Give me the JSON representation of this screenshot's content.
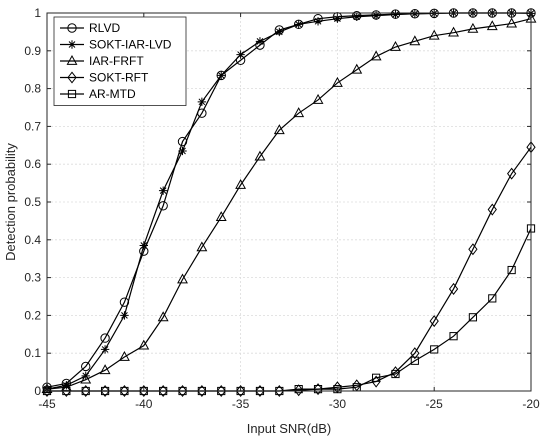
{
  "chart_data": {
    "type": "line",
    "xlabel": "Input SNR(dB)",
    "ylabel": "Detection probability",
    "xlim": [
      -45,
      -20
    ],
    "ylim": [
      0,
      1
    ],
    "xticks": [
      -45,
      -40,
      -35,
      -30,
      -25,
      -20
    ],
    "yticks": [
      0,
      0.1,
      0.2,
      0.3,
      0.4,
      0.5,
      0.6,
      0.7,
      0.8,
      0.9,
      1
    ],
    "grid": true,
    "legend_position": "top-left",
    "series": [
      {
        "name": "RLVD",
        "marker": "circle",
        "x": [
          -45,
          -44,
          -43,
          -42,
          -41,
          -40,
          -39,
          -38,
          -37,
          -36,
          -35,
          -34,
          -33,
          -32,
          -31,
          -30,
          -29,
          -28,
          -27,
          -26,
          -25,
          -24,
          -23,
          -22,
          -21,
          -20
        ],
        "y": [
          0.01,
          0.02,
          0.065,
          0.14,
          0.235,
          0.37,
          0.49,
          0.66,
          0.735,
          0.835,
          0.875,
          0.915,
          0.955,
          0.97,
          0.985,
          0.99,
          0.993,
          0.995,
          0.997,
          0.998,
          0.999,
          1.0,
          1.0,
          1.0,
          1.0,
          1.0
        ]
      },
      {
        "name": "SOKT-IAR-LVD",
        "marker": "asterisk",
        "x": [
          -45,
          -44,
          -43,
          -42,
          -41,
          -40,
          -39,
          -38,
          -37,
          -36,
          -35,
          -34,
          -33,
          -32,
          -31,
          -30,
          -29,
          -28,
          -27,
          -26,
          -25,
          -24,
          -23,
          -22,
          -21,
          -20
        ],
        "y": [
          0.005,
          0.015,
          0.04,
          0.11,
          0.2,
          0.385,
          0.53,
          0.635,
          0.765,
          0.835,
          0.89,
          0.925,
          0.95,
          0.97,
          0.978,
          0.985,
          0.99,
          0.993,
          0.996,
          0.998,
          0.999,
          1.0,
          1.0,
          1.0,
          1.0,
          0.999
        ]
      },
      {
        "name": "IAR-FRFT",
        "marker": "triangle",
        "x": [
          -45,
          -44,
          -43,
          -42,
          -41,
          -40,
          -39,
          -38,
          -37,
          -36,
          -35,
          -34,
          -33,
          -32,
          -31,
          -30,
          -29,
          -28,
          -27,
          -26,
          -25,
          -24,
          -23,
          -22,
          -21,
          -20
        ],
        "y": [
          0.005,
          0.01,
          0.03,
          0.055,
          0.09,
          0.12,
          0.195,
          0.295,
          0.38,
          0.46,
          0.545,
          0.62,
          0.69,
          0.735,
          0.77,
          0.815,
          0.85,
          0.885,
          0.91,
          0.925,
          0.94,
          0.948,
          0.958,
          0.965,
          0.972,
          0.985
        ]
      },
      {
        "name": "SOKT-RFT",
        "marker": "diamond",
        "x": [
          -45,
          -44,
          -43,
          -42,
          -41,
          -40,
          -39,
          -38,
          -37,
          -36,
          -35,
          -34,
          -33,
          -32,
          -31,
          -30,
          -29,
          -28,
          -27,
          -26,
          -25,
          -24,
          -23,
          -22,
          -21,
          -20
        ],
        "y": [
          0.0,
          0.0,
          0.0,
          0.0,
          0.0,
          0.0,
          0.0,
          0.0,
          0.0,
          0.0,
          0.0,
          0.0,
          0.0,
          0.002,
          0.005,
          0.01,
          0.015,
          0.025,
          0.05,
          0.1,
          0.185,
          0.27,
          0.375,
          0.48,
          0.575,
          0.645
        ]
      },
      {
        "name": "AR-MTD",
        "marker": "square",
        "x": [
          -45,
          -44,
          -43,
          -42,
          -41,
          -40,
          -39,
          -38,
          -37,
          -36,
          -35,
          -34,
          -33,
          -32,
          -31,
          -30,
          -29,
          -28,
          -27,
          -26,
          -25,
          -24,
          -23,
          -22,
          -21,
          -20
        ],
        "y": [
          0.0,
          0.0,
          0.0,
          0.0,
          0.0,
          0.0,
          0.0,
          0.0,
          0.0,
          0.0,
          0.0,
          0.0,
          0.0,
          0.005,
          0.005,
          0.005,
          0.01,
          0.035,
          0.045,
          0.08,
          0.11,
          0.145,
          0.195,
          0.245,
          0.32,
          0.43
        ]
      }
    ]
  }
}
